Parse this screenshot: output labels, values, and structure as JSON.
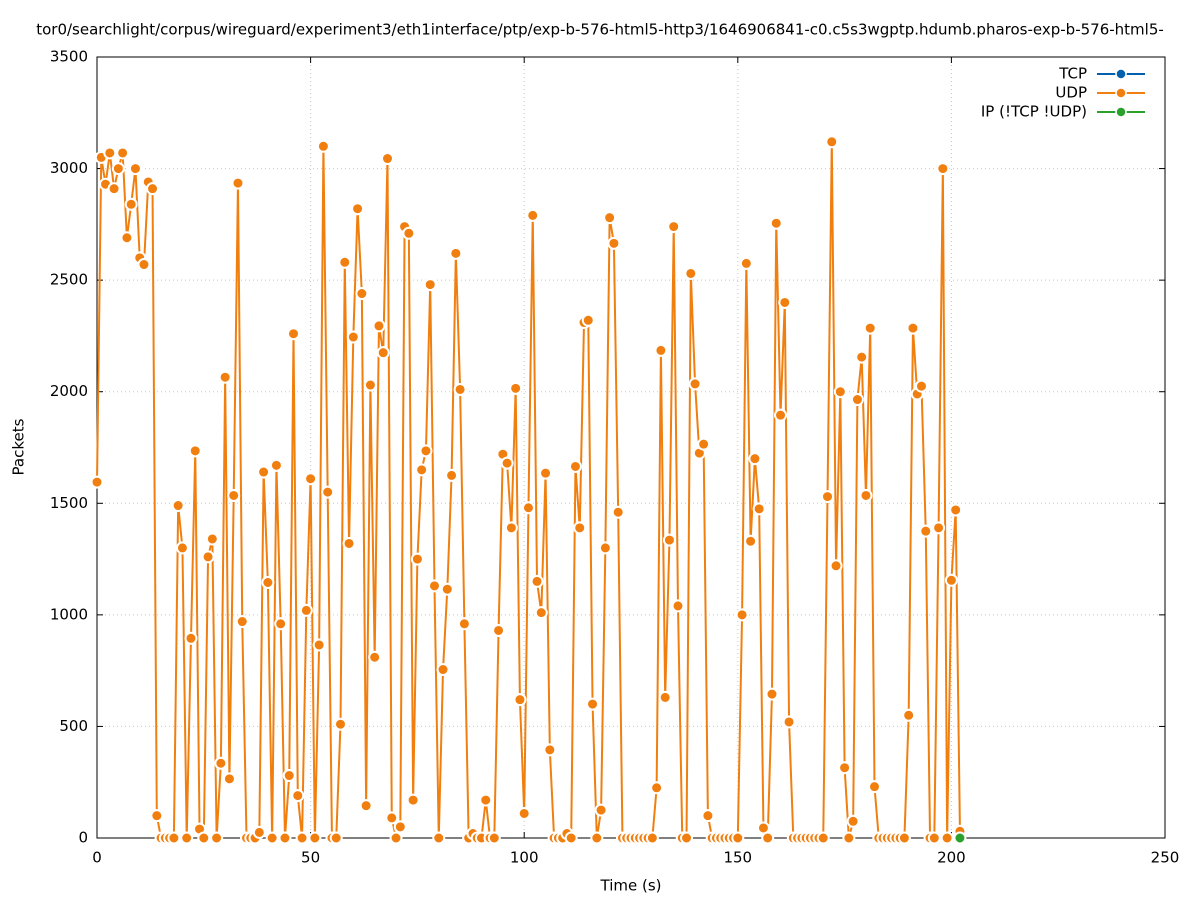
{
  "chart_data": {
    "type": "line",
    "title": "tor0/searchlight/corpus/wireguard/experiment3/eth1interface/ptp/exp-b-576-html5-http3/1646906841-c0.c5s3wgptp.hdumb.pharos-exp-b-576-html5-",
    "x_label": "Time (s)",
    "y_label": "Packets",
    "xlim": [
      0,
      250
    ],
    "xticks": [
      0,
      50,
      100,
      150,
      200,
      250
    ],
    "ylim": [
      0,
      3500
    ],
    "yticks": [
      0,
      500,
      1000,
      1500,
      2000,
      2500,
      3000,
      3500
    ],
    "grid": true,
    "legend": "top-right",
    "series": [
      {
        "name": "TCP",
        "color": "#0060ad",
        "x": [],
        "values": []
      },
      {
        "name": "UDP",
        "color": "#f07f10",
        "x": [
          0,
          1,
          2,
          3,
          4,
          5,
          6,
          7,
          8,
          9,
          10,
          11,
          12,
          13,
          14,
          15,
          16,
          17,
          18,
          19,
          20,
          21,
          22,
          23,
          24,
          25,
          26,
          27,
          28,
          29,
          30,
          31,
          32,
          33,
          34,
          35,
          36,
          37,
          38,
          39,
          40,
          41,
          42,
          43,
          44,
          45,
          46,
          47,
          48,
          49,
          50,
          51,
          52,
          53,
          54,
          55,
          56,
          57,
          58,
          59,
          60,
          61,
          62,
          63,
          64,
          65,
          66,
          67,
          68,
          69,
          70,
          71,
          72,
          73,
          74,
          75,
          76,
          77,
          78,
          79,
          80,
          81,
          82,
          83,
          84,
          85,
          86,
          87,
          88,
          89,
          90,
          91,
          92,
          93,
          94,
          95,
          96,
          97,
          98,
          99,
          100,
          101,
          102,
          103,
          104,
          105,
          106,
          107,
          108,
          109,
          110,
          111,
          112,
          113,
          114,
          115,
          116,
          117,
          118,
          119,
          120,
          121,
          122,
          123,
          124,
          125,
          126,
          127,
          128,
          129,
          130,
          131,
          132,
          133,
          134,
          135,
          136,
          137,
          138,
          139,
          140,
          141,
          142,
          143,
          144,
          145,
          146,
          147,
          148,
          149,
          150,
          151,
          152,
          153,
          154,
          155,
          156,
          157,
          158,
          159,
          160,
          161,
          162,
          163,
          164,
          165,
          166,
          167,
          168,
          169,
          170,
          171,
          172,
          173,
          174,
          175,
          176,
          177,
          178,
          179,
          180,
          181,
          182,
          183,
          184,
          185,
          186,
          187,
          188,
          189,
          190,
          191,
          192,
          193,
          194,
          195,
          196,
          197,
          198,
          199,
          200,
          201,
          202
        ],
        "values": [
          1595,
          3050,
          2930,
          3070,
          2910,
          3000,
          3070,
          2690,
          2840,
          3000,
          2600,
          2570,
          2940,
          2910,
          100,
          0,
          0,
          0,
          0,
          1490,
          1300,
          0,
          895,
          1735,
          40,
          0,
          1260,
          1340,
          0,
          335,
          2065,
          265,
          1535,
          2935,
          970,
          0,
          0,
          0,
          25,
          1640,
          1145,
          0,
          1670,
          960,
          0,
          280,
          2260,
          190,
          0,
          1020,
          1610,
          0,
          865,
          3100,
          1550,
          0,
          0,
          510,
          2580,
          1320,
          2245,
          2820,
          2440,
          145,
          2030,
          810,
          2295,
          2175,
          3045,
          90,
          0,
          50,
          2740,
          2710,
          170,
          1250,
          1650,
          1735,
          2480,
          1130,
          0,
          755,
          1115,
          1625,
          2620,
          2010,
          960,
          0,
          20,
          0,
          0,
          170,
          0,
          0,
          930,
          1720,
          1680,
          1390,
          2015,
          620,
          110,
          1480,
          2790,
          1150,
          1010,
          1635,
          395,
          0,
          0,
          0,
          20,
          0,
          1665,
          1390,
          2310,
          2320,
          600,
          0,
          125,
          1300,
          2780,
          2665,
          1460,
          0,
          0,
          0,
          0,
          0,
          0,
          0,
          0,
          225,
          2185,
          630,
          1335,
          2740,
          1040,
          0,
          0,
          2530,
          2035,
          1725,
          1765,
          100,
          0,
          0,
          0,
          0,
          0,
          0,
          0,
          1000,
          2575,
          1330,
          1700,
          1475,
          45,
          0,
          645,
          2755,
          1895,
          2400,
          520,
          0,
          0,
          0,
          0,
          0,
          0,
          0,
          0,
          1530,
          3120,
          1220,
          2000,
          315,
          0,
          75,
          1965,
          2155,
          1535,
          2285,
          230,
          0,
          0,
          0,
          0,
          0,
          0,
          0,
          550,
          2285,
          1990,
          2025,
          1375,
          0,
          0,
          1390,
          3000,
          0,
          1155,
          1470,
          30
        ]
      },
      {
        "name": "IP (!TCP  !UDP)",
        "color": "#2ca02c",
        "x": [
          202
        ],
        "values": [
          0
        ]
      }
    ]
  }
}
